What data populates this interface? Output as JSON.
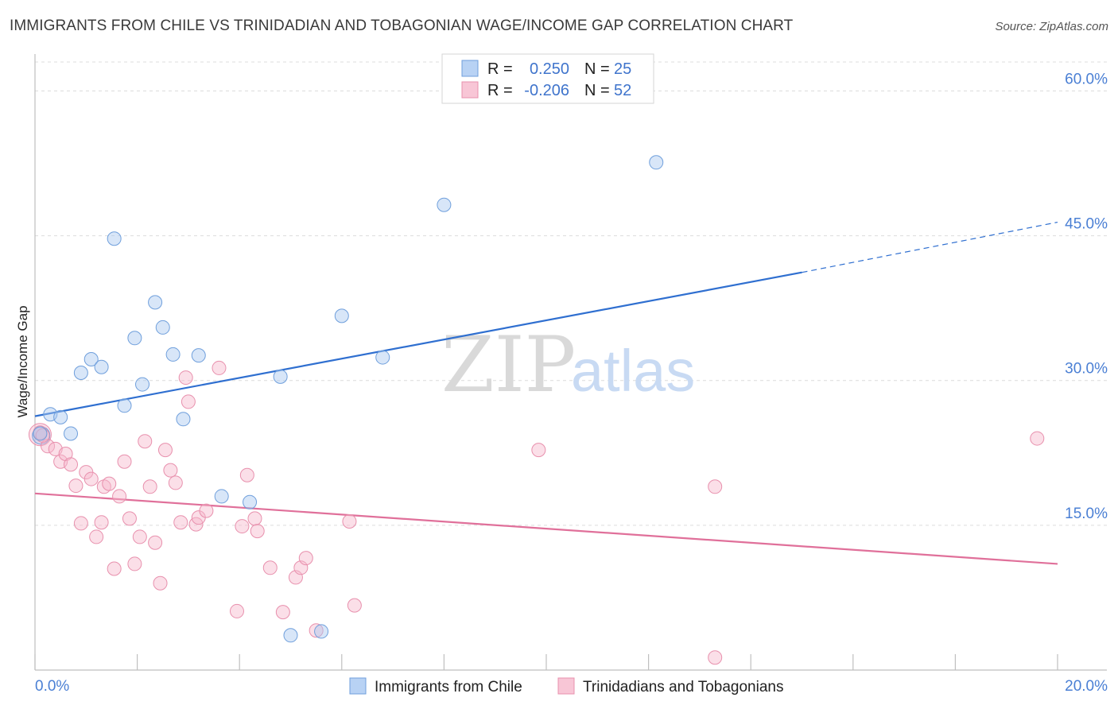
{
  "title": "IMMIGRANTS FROM CHILE VS TRINIDADIAN AND TOBAGONIAN WAGE/INCOME GAP CORRELATION CHART",
  "source": "Source: ZipAtlas.com",
  "watermark": {
    "part1": "ZIP",
    "part2": "atlas"
  },
  "colors": {
    "blue": "#a8c8f0",
    "blue_edge": "#6f9fdc",
    "blue_line": "#2f6fd0",
    "pink": "#f6b8cc",
    "pink_edge": "#e890ad",
    "pink_line": "#e0709a",
    "axis_text": "#4a7fd4",
    "grid": "#dcdcdc"
  },
  "legend": {
    "rows": [
      {
        "r_label": "R =",
        "r_value": "0.250",
        "n_label": "N =",
        "n_value": "25"
      },
      {
        "r_label": "R =",
        "r_value": "-0.206",
        "n_label": "N =",
        "n_value": "52"
      }
    ]
  },
  "chart_data": {
    "type": "scatter",
    "title": "IMMIGRANTS FROM CHILE VS TRINIDADIAN AND TOBAGONIAN WAGE/INCOME GAP CORRELATION CHART",
    "xlabel": "",
    "ylabel": "Wage/Income Gap",
    "xlim": [
      0,
      20
    ],
    "ylim": [
      0,
      63
    ],
    "x_tick_labels": [
      "0.0%",
      "20.0%"
    ],
    "y_ticks": [
      15,
      30,
      45,
      60
    ],
    "y_tick_labels": [
      "15.0%",
      "30.0%",
      "45.0%",
      "60.0%"
    ],
    "series": [
      {
        "name": "Immigrants from Chile",
        "color": "blue",
        "points": [
          [
            0.1,
            24.5
          ],
          [
            0.3,
            26.5
          ],
          [
            0.5,
            26.2
          ],
          [
            0.7,
            24.5
          ],
          [
            0.9,
            30.8
          ],
          [
            1.1,
            32.2
          ],
          [
            1.3,
            31.4
          ],
          [
            1.55,
            44.7
          ],
          [
            1.75,
            27.4
          ],
          [
            1.95,
            34.4
          ],
          [
            2.1,
            29.6
          ],
          [
            2.35,
            38.1
          ],
          [
            2.5,
            35.5
          ],
          [
            2.7,
            32.7
          ],
          [
            2.9,
            26.0
          ],
          [
            3.2,
            32.6
          ],
          [
            3.65,
            18.0
          ],
          [
            4.2,
            17.4
          ],
          [
            4.8,
            30.4
          ],
          [
            5.0,
            3.6
          ],
          [
            5.6,
            4.0
          ],
          [
            6.0,
            36.7
          ],
          [
            6.8,
            32.4
          ],
          [
            8.0,
            48.2
          ],
          [
            12.15,
            52.6
          ]
        ],
        "trend": {
          "x": [
            0,
            15.0
          ],
          "y": [
            26.3,
            41.2
          ],
          "dashed_to": [
            20.0,
            46.4
          ]
        }
      },
      {
        "name": "Trinidadians and Tobagonians",
        "color": "pink",
        "points": [
          [
            0.1,
            24.6
          ],
          [
            0.25,
            23.2
          ],
          [
            0.4,
            22.9
          ],
          [
            0.5,
            21.6
          ],
          [
            0.6,
            22.4
          ],
          [
            0.7,
            21.3
          ],
          [
            0.8,
            19.1
          ],
          [
            0.9,
            15.2
          ],
          [
            1.0,
            20.5
          ],
          [
            1.1,
            19.8
          ],
          [
            1.2,
            13.8
          ],
          [
            1.3,
            15.3
          ],
          [
            1.35,
            19.0
          ],
          [
            1.45,
            19.3
          ],
          [
            1.55,
            10.5
          ],
          [
            1.65,
            18.0
          ],
          [
            1.75,
            21.6
          ],
          [
            1.85,
            15.7
          ],
          [
            1.95,
            11.0
          ],
          [
            2.05,
            13.8
          ],
          [
            2.15,
            23.7
          ],
          [
            2.25,
            19.0
          ],
          [
            2.35,
            13.2
          ],
          [
            2.45,
            9.0
          ],
          [
            2.55,
            22.8
          ],
          [
            2.65,
            20.7
          ],
          [
            2.75,
            19.4
          ],
          [
            2.85,
            15.3
          ],
          [
            2.95,
            30.3
          ],
          [
            3.0,
            27.8
          ],
          [
            3.15,
            15.1
          ],
          [
            3.2,
            15.8
          ],
          [
            3.35,
            16.5
          ],
          [
            3.6,
            31.3
          ],
          [
            3.95,
            6.1
          ],
          [
            4.05,
            14.9
          ],
          [
            4.15,
            20.2
          ],
          [
            4.3,
            15.7
          ],
          [
            4.35,
            14.4
          ],
          [
            4.6,
            10.6
          ],
          [
            4.85,
            6.0
          ],
          [
            5.1,
            9.6
          ],
          [
            5.2,
            10.6
          ],
          [
            5.3,
            11.6
          ],
          [
            5.5,
            4.1
          ],
          [
            6.15,
            15.4
          ],
          [
            6.25,
            6.7
          ],
          [
            9.85,
            22.8
          ],
          [
            13.3,
            19.0
          ],
          [
            13.3,
            1.3
          ],
          [
            19.6,
            24.0
          ],
          [
            0.15,
            24.3
          ]
        ],
        "trend": {
          "x": [
            0,
            20.0
          ],
          "y": [
            18.3,
            11.0
          ]
        }
      }
    ]
  }
}
